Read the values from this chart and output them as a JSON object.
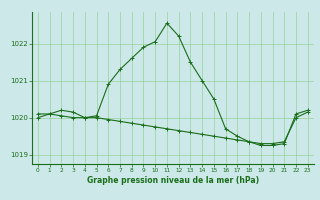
{
  "line1_x": [
    0,
    1,
    2,
    3,
    4,
    5,
    6,
    7,
    8,
    9,
    10,
    11,
    12,
    13,
    14,
    15,
    16,
    17,
    18,
    19,
    20,
    21,
    22,
    23
  ],
  "line1_y": [
    1020.0,
    1020.1,
    1020.2,
    1020.15,
    1020.0,
    1020.05,
    1020.9,
    1021.3,
    1021.6,
    1021.9,
    1022.05,
    1022.55,
    1022.2,
    1021.5,
    1021.0,
    1020.5,
    1019.7,
    1019.5,
    1019.35,
    1019.25,
    1019.25,
    1019.3,
    1020.1,
    1020.2
  ],
  "line2_x": [
    0,
    1,
    2,
    3,
    4,
    5,
    6,
    7,
    8,
    9,
    10,
    11,
    12,
    13,
    14,
    15,
    16,
    17,
    18,
    19,
    20,
    21,
    22,
    23
  ],
  "line2_y": [
    1020.1,
    1020.1,
    1020.05,
    1020.0,
    1020.0,
    1020.0,
    1019.95,
    1019.9,
    1019.85,
    1019.8,
    1019.75,
    1019.7,
    1019.65,
    1019.6,
    1019.55,
    1019.5,
    1019.45,
    1019.4,
    1019.35,
    1019.3,
    1019.3,
    1019.35,
    1020.0,
    1020.15
  ],
  "line_color": "#1a6e1a",
  "bg_color": "#cce8e8",
  "grid_color": "#88cc88",
  "ylim": [
    1018.75,
    1022.85
  ],
  "yticks": [
    1019,
    1020,
    1021,
    1022
  ],
  "xticks": [
    0,
    1,
    2,
    3,
    4,
    5,
    6,
    7,
    8,
    9,
    10,
    11,
    12,
    13,
    14,
    15,
    16,
    17,
    18,
    19,
    20,
    21,
    22,
    23
  ],
  "xlabel": "Graphe pression niveau de la mer (hPa)",
  "xlabel_color": "#1a6e1a",
  "tick_color": "#1a6e1a",
  "spine_color": "#1a6e1a"
}
